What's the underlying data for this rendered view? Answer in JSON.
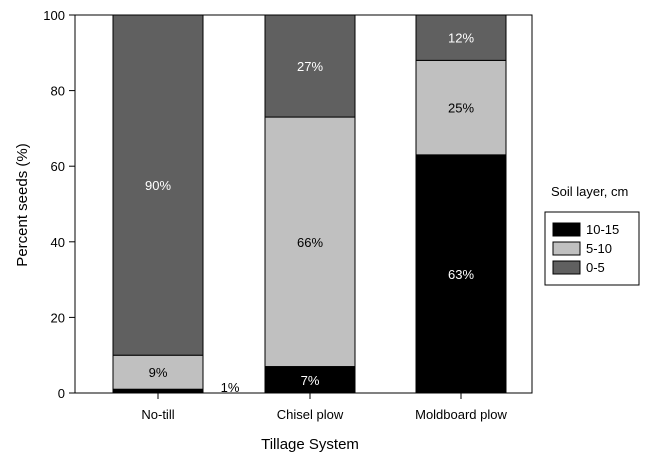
{
  "chart_data": {
    "type": "bar",
    "stacked": true,
    "categories": [
      "No-till",
      "Chisel plow",
      "Moldboard plow"
    ],
    "series": [
      {
        "name": "10-15",
        "values": [
          1,
          7,
          63
        ],
        "labels": [
          "",
          "7%",
          "63%"
        ],
        "color": "#000000",
        "label_color": "#ffffff"
      },
      {
        "name": "5-10",
        "values": [
          9,
          66,
          25
        ],
        "labels": [
          "9%",
          "66%",
          "25%"
        ],
        "color": "#c0c0c0",
        "label_color": "#000000"
      },
      {
        "name": "0-5",
        "values": [
          90,
          27,
          12
        ],
        "labels": [
          "90%",
          "27%",
          "12%"
        ],
        "color": "#606060",
        "label_color": "#ffffff"
      }
    ],
    "annotations": [
      {
        "text": "1%",
        "category": "No-till",
        "value": 1
      }
    ],
    "title": "",
    "xlabel": "Tillage System",
    "ylabel": "Percent seeds (%)",
    "ylim": [
      0,
      100
    ],
    "yticks": [
      0,
      20,
      40,
      60,
      80,
      100
    ],
    "grid": false,
    "legend": {
      "title": "Soil layer, cm",
      "placement": "right",
      "entries": [
        "10-15",
        "5-10",
        "0-5"
      ]
    }
  }
}
